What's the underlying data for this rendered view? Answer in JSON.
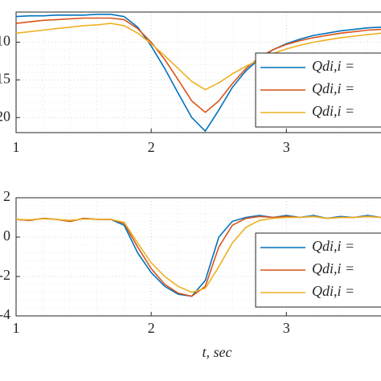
{
  "chart_data": [
    {
      "type": "line",
      "xlim": [
        1,
        3.7
      ],
      "xticks": [
        1,
        2,
        3
      ],
      "ylim": [
        -22,
        -6
      ],
      "yticks": [
        -10,
        -15,
        -20
      ],
      "grid": true,
      "x": [
        1.0,
        1.1,
        1.2,
        1.3,
        1.4,
        1.5,
        1.6,
        1.7,
        1.8,
        1.9,
        2.0,
        2.1,
        2.2,
        2.3,
        2.4,
        2.5,
        2.6,
        2.7,
        2.8,
        2.9,
        3.0,
        3.1,
        3.2,
        3.3,
        3.4,
        3.5,
        3.6,
        3.7
      ],
      "series": [
        {
          "name": "Qdi,i =",
          "color": "#0072BD",
          "values": [
            -6.6,
            -6.5,
            -6.5,
            -6.4,
            -6.4,
            -6.4,
            -6.3,
            -6.3,
            -6.6,
            -8,
            -10.5,
            -13.5,
            -16.8,
            -20,
            -21.8,
            -19,
            -16,
            -13.8,
            -12.2,
            -11,
            -10.2,
            -9.6,
            -9.1,
            -8.8,
            -8.5,
            -8.3,
            -8.1,
            -8.0
          ]
        },
        {
          "name": "Qdi,i =",
          "color": "#D95319",
          "values": [
            -7.5,
            -7.3,
            -7.1,
            -7.0,
            -6.9,
            -6.8,
            -6.8,
            -6.8,
            -7.0,
            -8.2,
            -10,
            -12.3,
            -15,
            -17.8,
            -19.3,
            -17.8,
            -15.5,
            -13.5,
            -12,
            -11,
            -10.3,
            -9.8,
            -9.4,
            -9.1,
            -8.8,
            -8.6,
            -8.4,
            -8.3
          ]
        },
        {
          "name": "Qdi,i =",
          "color": "#EDB120",
          "values": [
            -8.8,
            -8.6,
            -8.4,
            -8.2,
            -8.0,
            -7.8,
            -7.7,
            -7.5,
            -7.8,
            -8.8,
            -10.2,
            -11.8,
            -13.5,
            -15.2,
            -16.3,
            -15.4,
            -14.2,
            -13.2,
            -12.3,
            -11.5,
            -10.9,
            -10.4,
            -10,
            -9.7,
            -9.4,
            -9.2,
            -9.0,
            -8.8
          ]
        }
      ]
    },
    {
      "type": "line",
      "xlim": [
        1,
        3.7
      ],
      "xticks": [
        1,
        2,
        3
      ],
      "ylim": [
        -4,
        2
      ],
      "yticks": [
        2,
        0,
        -2,
        -4
      ],
      "grid": true,
      "xlabel": "t, sec",
      "x": [
        1.0,
        1.1,
        1.2,
        1.3,
        1.4,
        1.5,
        1.6,
        1.7,
        1.8,
        1.9,
        2.0,
        2.1,
        2.2,
        2.3,
        2.4,
        2.5,
        2.6,
        2.7,
        2.8,
        2.9,
        3.0,
        3.1,
        3.2,
        3.3,
        3.4,
        3.5,
        3.6,
        3.7
      ],
      "series": [
        {
          "name": "Qdi,i =",
          "color": "#0072BD",
          "values": [
            0.9,
            0.85,
            0.95,
            0.9,
            0.8,
            0.95,
            0.9,
            0.9,
            0.6,
            -0.8,
            -1.8,
            -2.5,
            -2.9,
            -3.0,
            -2.2,
            0.0,
            0.8,
            1.0,
            1.1,
            1.0,
            1.1,
            1.0,
            1.1,
            0.95,
            1.05,
            1.0,
            1.1,
            1.0
          ]
        },
        {
          "name": "Qdi,i =",
          "color": "#D95319",
          "values": [
            0.9,
            0.85,
            0.95,
            0.9,
            0.8,
            0.95,
            0.9,
            0.9,
            0.7,
            -0.5,
            -1.6,
            -2.4,
            -2.85,
            -3.0,
            -2.5,
            -0.5,
            0.6,
            0.95,
            1.05,
            1.0,
            1.05,
            1.0,
            1.05,
            0.95,
            1.0,
            1.0,
            1.05,
            1.0
          ]
        },
        {
          "name": "Qdi,i =",
          "color": "#EDB120",
          "values": [
            0.9,
            0.88,
            0.93,
            0.9,
            0.85,
            0.92,
            0.9,
            0.9,
            0.75,
            -0.3,
            -1.3,
            -2.0,
            -2.5,
            -2.8,
            -2.6,
            -1.5,
            -0.3,
            0.5,
            0.85,
            0.95,
            1.0,
            1.0,
            1.05,
            0.95,
            1.0,
            1.0,
            1.05,
            1.0
          ]
        }
      ]
    }
  ]
}
